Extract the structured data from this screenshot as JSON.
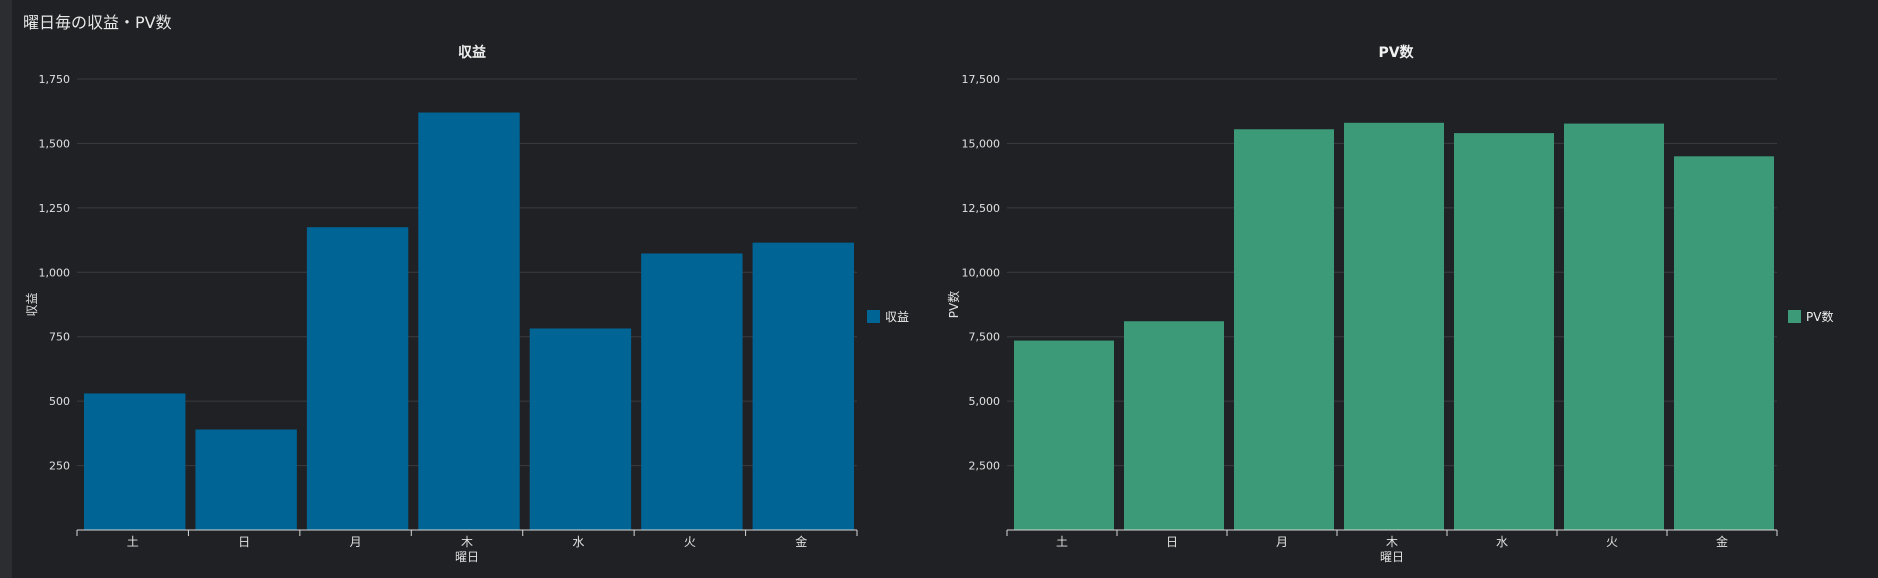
{
  "panel": {
    "title": "曜日毎の収益・PV数"
  },
  "colors": {
    "revenue": "#006494",
    "pv": "#3c9a78"
  },
  "chart_data": [
    {
      "type": "bar",
      "title": "収益",
      "xlabel": "曜日",
      "ylabel": "収益",
      "categories": [
        "土",
        "日",
        "月",
        "木",
        "水",
        "火",
        "金"
      ],
      "series": [
        {
          "name": "収益",
          "values": [
            530,
            390,
            1175,
            1620,
            782,
            1073,
            1115
          ]
        }
      ],
      "ylim": [
        0,
        1750
      ],
      "yticks": [
        250,
        500,
        750,
        1000,
        1250,
        1500,
        1750
      ],
      "ytick_labels": [
        "250",
        "500",
        "750",
        "1,000",
        "1,250",
        "1,500",
        "1,750"
      ],
      "grid": true,
      "legend": "right"
    },
    {
      "type": "bar",
      "title": "PV数",
      "xlabel": "曜日",
      "ylabel": "PV数",
      "categories": [
        "土",
        "日",
        "月",
        "木",
        "水",
        "火",
        "金"
      ],
      "series": [
        {
          "name": "PV数",
          "values": [
            7350,
            8100,
            15550,
            15800,
            15400,
            15770,
            14500
          ]
        }
      ],
      "ylim": [
        0,
        17500
      ],
      "yticks": [
        2500,
        5000,
        7500,
        10000,
        12500,
        15000,
        17500
      ],
      "ytick_labels": [
        "2,500",
        "5,000",
        "7,500",
        "10,000",
        "12,500",
        "15,000",
        "17,500"
      ],
      "grid": true,
      "legend": "right"
    }
  ]
}
